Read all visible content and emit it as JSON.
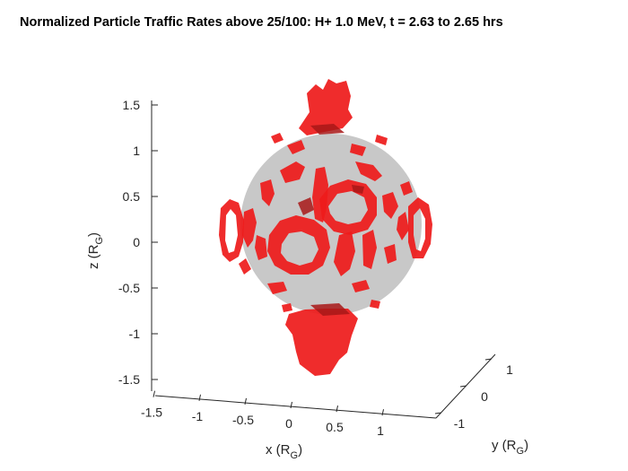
{
  "chart_data": {
    "type": "3d-isosurface",
    "title": "Normalized Particle Traffic Rates above 25/100: H+ 1.0 MeV, t = 2.63 to 2.65 hrs",
    "xlabel": {
      "base": "x (R",
      "sub": "G",
      "close": ")"
    },
    "ylabel": {
      "base": "y (R",
      "sub": "G",
      "close": ")"
    },
    "zlabel": {
      "base": "z (R",
      "sub": "G",
      "close": ")"
    },
    "x_ticks": [
      "-1.5",
      "-1",
      "-0.5",
      "0",
      "0.5",
      "1"
    ],
    "x_tick_values": [
      -1.5,
      -1,
      -0.5,
      0,
      0.5,
      1
    ],
    "y_ticks": [
      "-1",
      "0",
      "1"
    ],
    "y_tick_values": [
      -1,
      0,
      1
    ],
    "z_ticks": [
      "1.5",
      "1",
      "0.5",
      "0",
      "-0.5",
      "-1",
      "-1.5"
    ],
    "z_tick_values": [
      1.5,
      1,
      0.5,
      0,
      -0.5,
      -1,
      -1.5
    ],
    "xlim": [
      -1.5,
      1.1
    ],
    "ylim": [
      -1.2,
      1.2
    ],
    "zlim": [
      -1.6,
      1.55
    ],
    "sphere": {
      "radius": 1.0,
      "color": "#c8c8c8"
    },
    "isosurface": {
      "threshold": 25,
      "color": "#ee1c1c",
      "dark_color": "#a81818"
    }
  }
}
